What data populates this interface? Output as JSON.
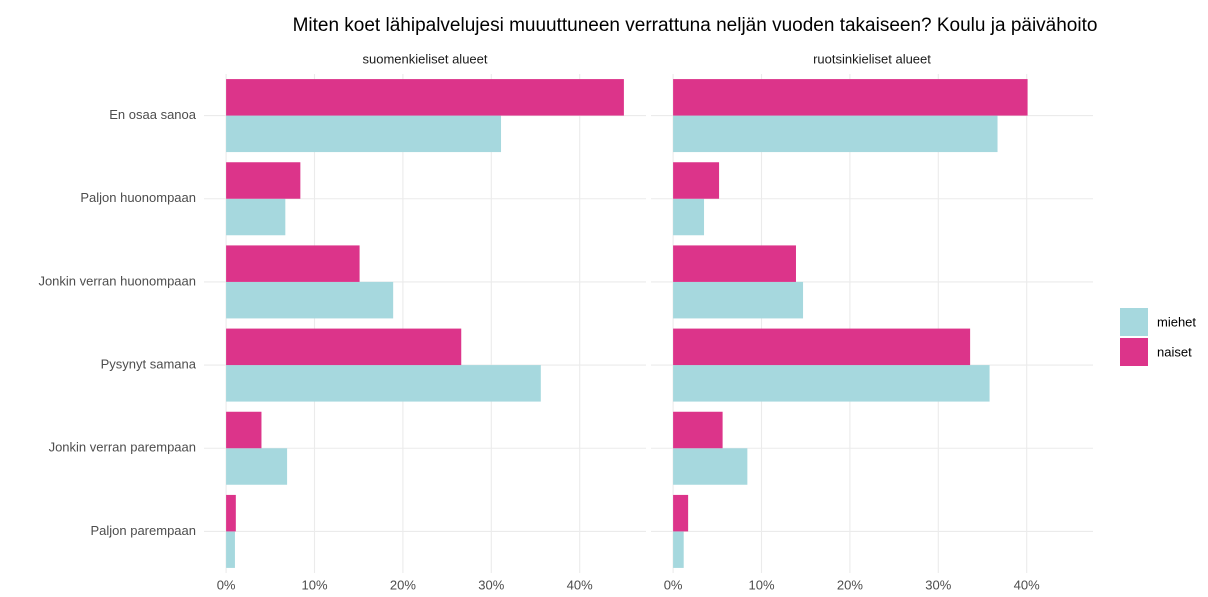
{
  "title": "Miten koet lähipalvelujesi muuuttuneen verrattuna neljän vuoden takaiseen? Koulu ja päivähoito",
  "chart_data": [
    {
      "type": "bar",
      "title": "suomenkieliset alueet",
      "categories": [
        "En osaa sanoa",
        "Paljon huonompaan",
        "Jonkin verran huonompaan",
        "Pysynyt samana",
        "Jonkin verran parempaan",
        "Paljon parempaan"
      ],
      "series": [
        {
          "name": "miehet",
          "color": "#a6d8de",
          "values": [
            31.1,
            6.7,
            18.9,
            35.6,
            6.9,
            1.0
          ]
        },
        {
          "name": "naiset",
          "color": "#dc348a",
          "values": [
            45.0,
            8.4,
            15.1,
            26.6,
            4.0,
            1.1
          ]
        }
      ],
      "xlim": [
        -2.5,
        47.5
      ],
      "xticks": [
        {
          "value": 0,
          "label": "0%"
        },
        {
          "value": 10,
          "label": "10%"
        },
        {
          "value": 20,
          "label": "20%"
        },
        {
          "value": 30,
          "label": "30%"
        },
        {
          "value": 40,
          "label": "40%"
        }
      ],
      "grid": true,
      "legend": "right"
    },
    {
      "type": "bar",
      "title": "ruotsinkieliset alueet",
      "categories": [
        "En osaa sanoa",
        "Paljon huonompaan",
        "Jonkin verran huonompaan",
        "Pysynyt samana",
        "Jonkin verran parempaan",
        "Paljon parempaan"
      ],
      "series": [
        {
          "name": "miehet",
          "color": "#a6d8de",
          "values": [
            36.7,
            3.5,
            14.7,
            35.8,
            8.4,
            1.2
          ]
        },
        {
          "name": "naiset",
          "color": "#dc348a",
          "values": [
            40.1,
            5.2,
            13.9,
            33.6,
            5.6,
            1.7
          ]
        }
      ],
      "xlim": [
        -2.5,
        47.5
      ],
      "xticks": [
        {
          "value": 0,
          "label": "0%"
        },
        {
          "value": 10,
          "label": "10%"
        },
        {
          "value": 20,
          "label": "20%"
        },
        {
          "value": 30,
          "label": "30%"
        },
        {
          "value": 40,
          "label": "40%"
        }
      ],
      "grid": true
    }
  ]
}
